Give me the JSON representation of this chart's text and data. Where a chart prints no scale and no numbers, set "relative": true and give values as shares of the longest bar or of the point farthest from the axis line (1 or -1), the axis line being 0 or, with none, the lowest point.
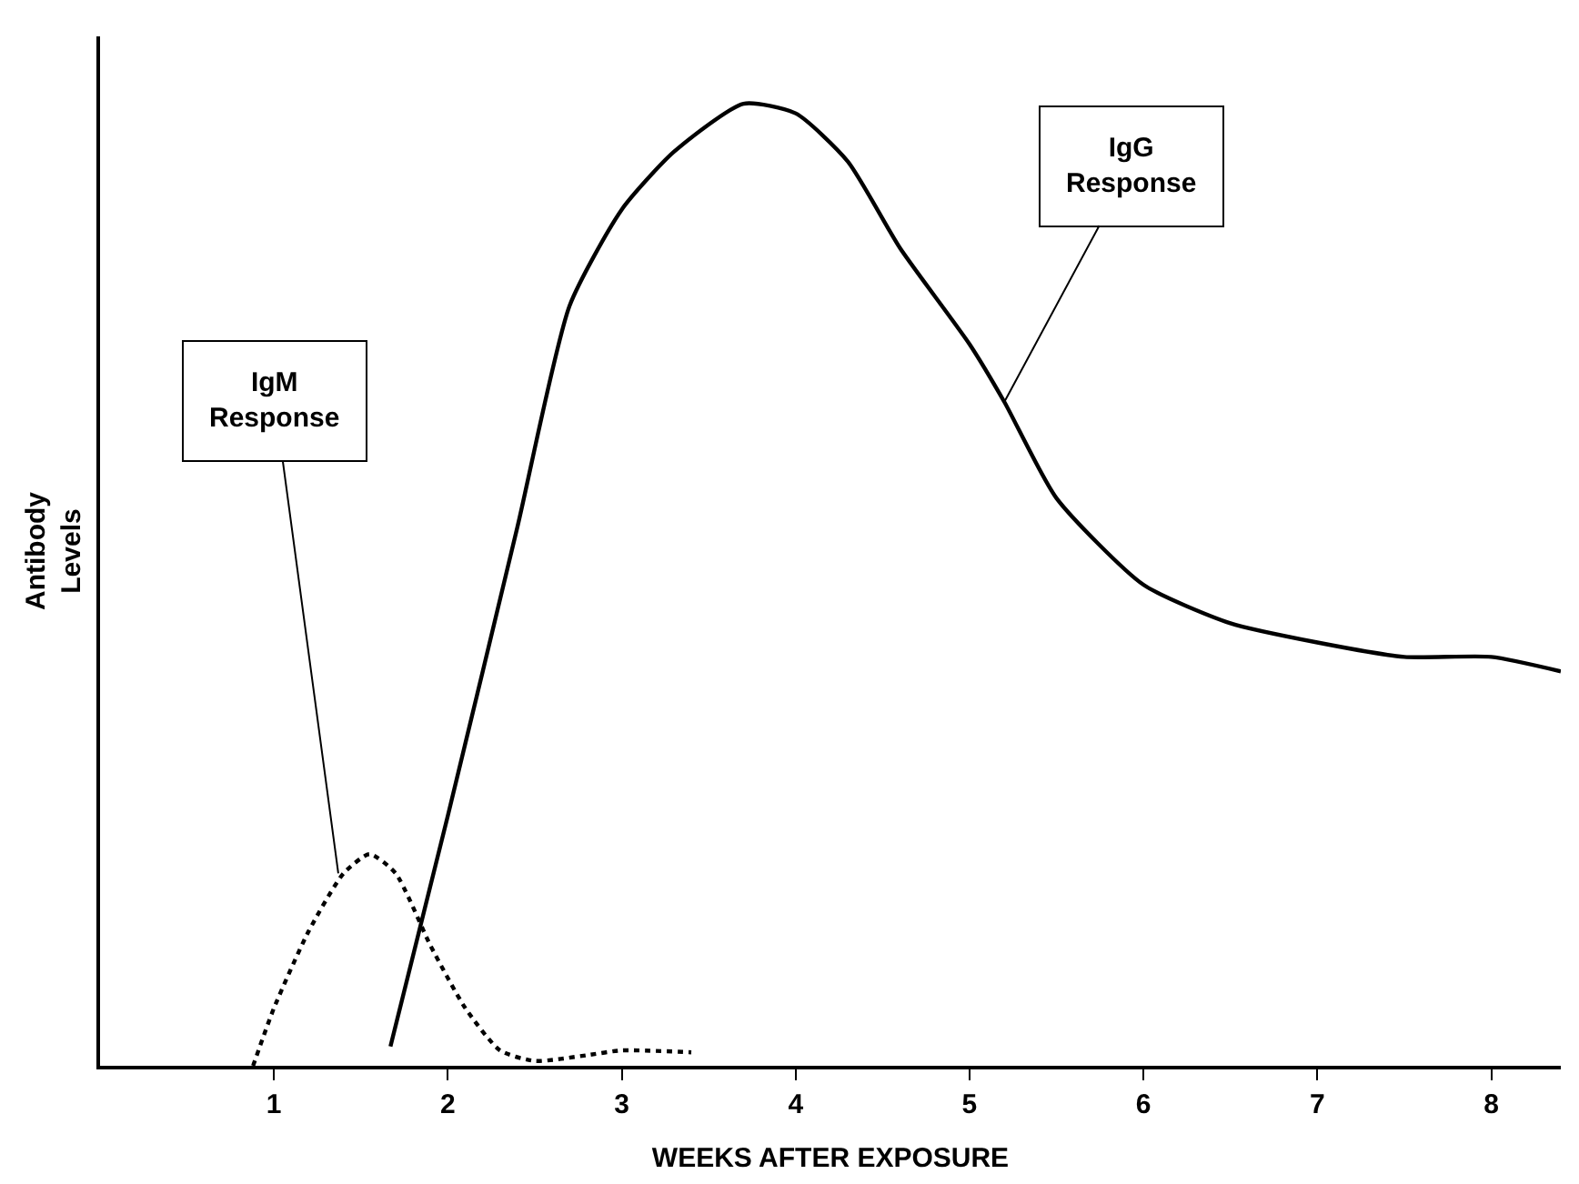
{
  "chart_data": {
    "type": "line",
    "relative": true,
    "xlabel": "WEEKS AFTER EXPOSURE",
    "ylabel": "Antibody Levels",
    "xlim": [
      0,
      8.4
    ],
    "xticks": [
      1,
      2,
      3,
      4,
      5,
      6,
      7,
      8
    ],
    "grid": false,
    "marker": "none",
    "series": [
      {
        "color": "#000000",
        "line_style": "dotted",
        "x": [
          0.88,
          1.0,
          1.2,
          1.4,
          1.55,
          1.7,
          1.9,
          2.1,
          2.3,
          2.5,
          2.8,
          3.0,
          3.4
        ],
        "values": [
          0,
          0.06,
          0.14,
          0.2,
          0.22,
          0.2,
          0.125,
          0.06,
          0.016,
          0.005,
          0.011,
          0.016,
          0.014
        ]
      },
      {
        "color": "#000000",
        "line_style": "solid",
        "x": [
          1.67,
          2.0,
          2.4,
          2.7,
          3.0,
          3.3,
          3.7,
          4.0,
          4.3,
          4.6,
          5.0,
          5.2,
          5.5,
          6.0,
          6.5,
          7.0,
          7.5,
          8.0,
          8.4
        ],
        "values": [
          0.02,
          0.26,
          0.56,
          0.79,
          0.89,
          0.95,
          1.0,
          0.99,
          0.94,
          0.85,
          0.75,
          0.69,
          0.59,
          0.5,
          0.46,
          0.44,
          0.425,
          0.425,
          0.41
        ]
      }
    ],
    "annotations": [
      {
        "text": "IgM Response",
        "x": 1.37,
        "y": 0.2
      },
      {
        "text": "IgG Response",
        "x": 5.2,
        "y": 0.69
      }
    ]
  }
}
